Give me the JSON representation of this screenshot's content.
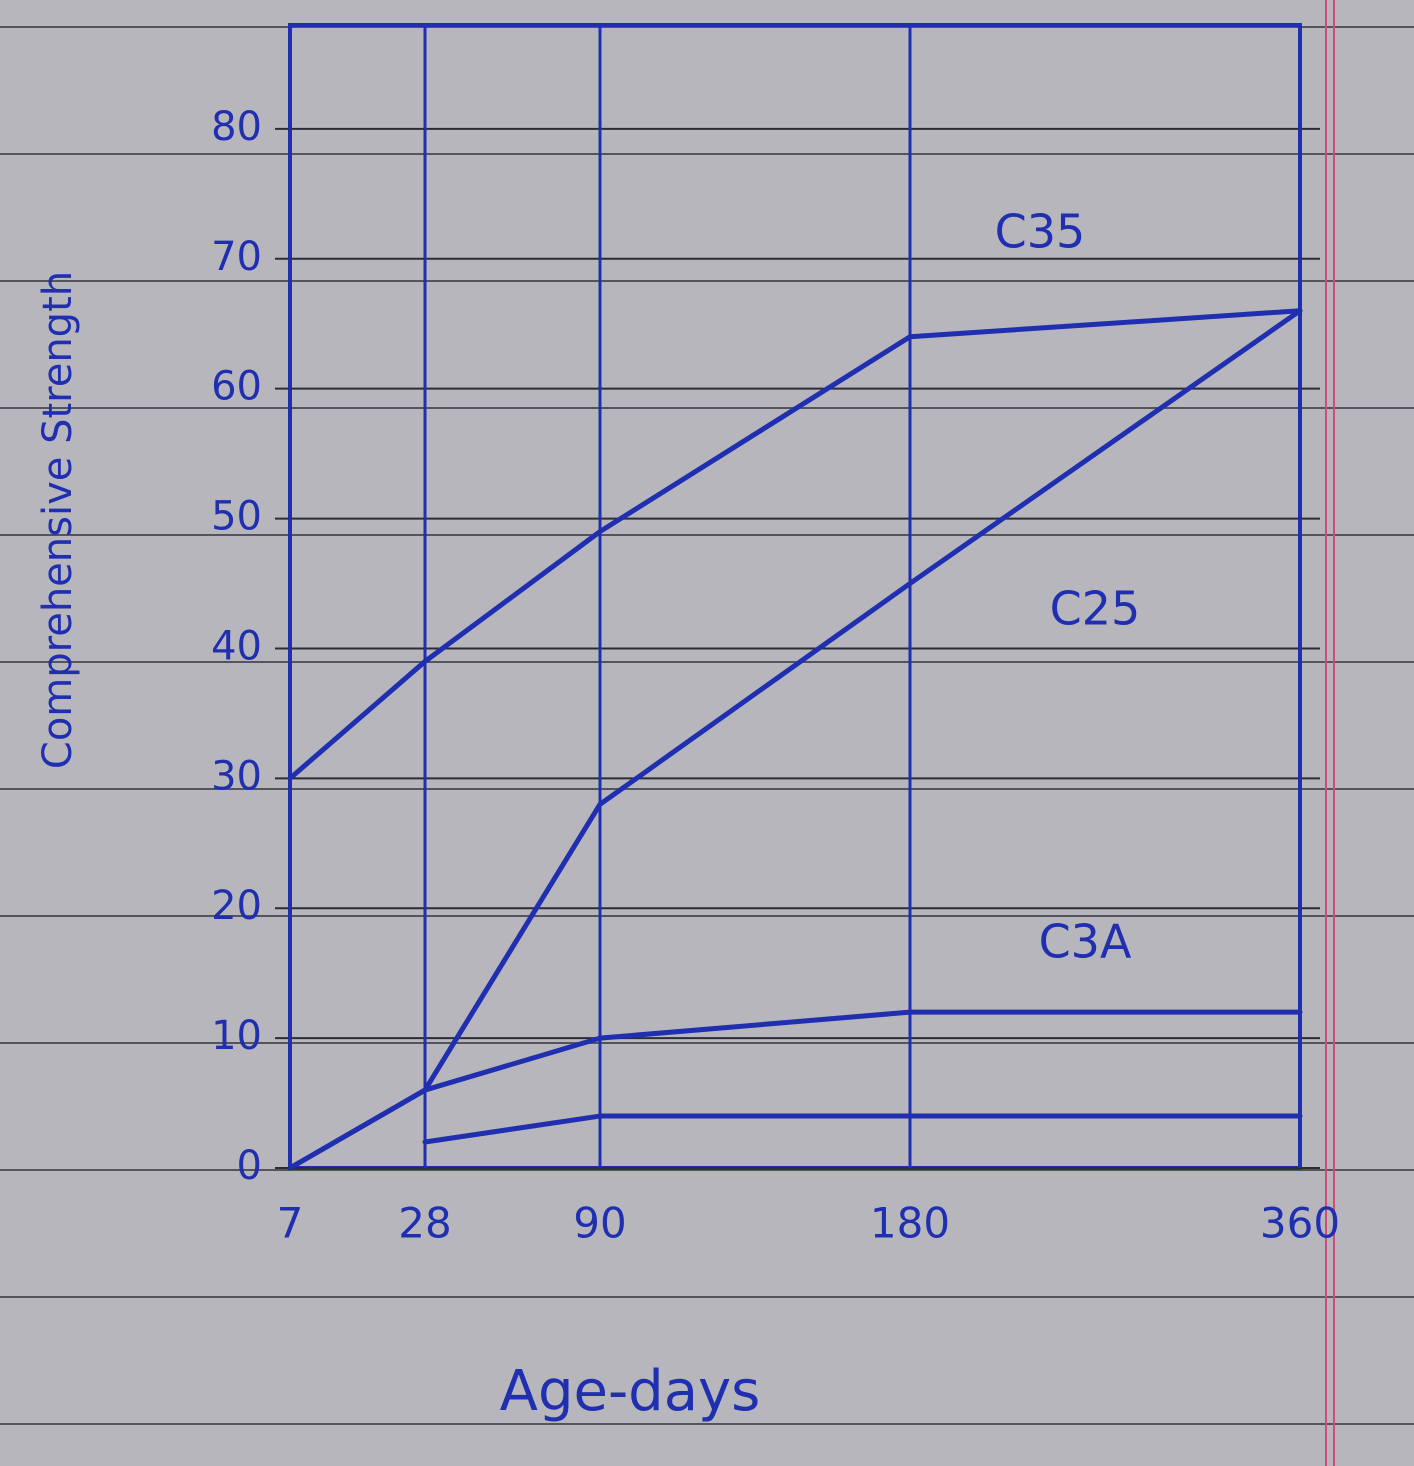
{
  "chart_data": {
    "type": "line",
    "x_label": "Age-days",
    "y_label": "Comprehensive Strength",
    "categories": [
      "7",
      "28",
      "90",
      "180",
      "360"
    ],
    "series": [
      {
        "name": "C35",
        "color": "#1f2fb0",
        "values": [
          30,
          39,
          49,
          64,
          66
        ]
      },
      {
        "name": "C25",
        "color": "#1f2fb0",
        "values": [
          0,
          6,
          28,
          45,
          66
        ]
      },
      {
        "name": "C3A",
        "color": "#1f2fb0",
        "values": [
          0,
          6,
          10,
          12,
          12
        ]
      },
      {
        "color": "#1f2fb0",
        "values": [
          null,
          2,
          4,
          4,
          4
        ]
      }
    ],
    "ylim": [
      0,
      88
    ],
    "yticks": [
      0,
      10,
      20,
      30,
      40,
      50,
      60,
      70,
      80
    ],
    "grid": true
  }
}
